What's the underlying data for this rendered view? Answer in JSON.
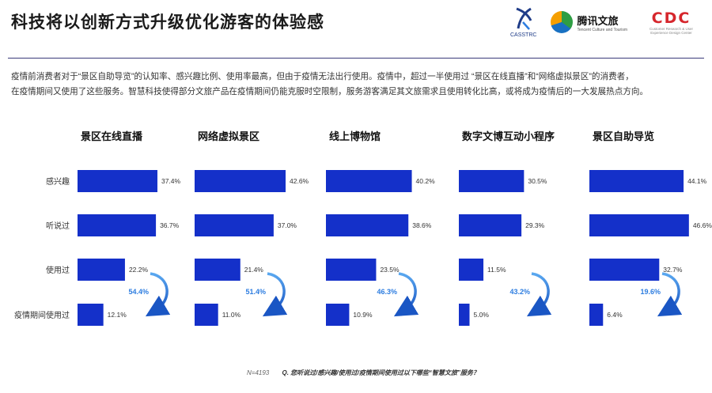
{
  "header": {
    "title": "科技将以创新方式升级优化游客的体验感",
    "logos": [
      {
        "icon": "casstrc-logo-icon",
        "text": "CASSTRC"
      },
      {
        "icon": "tencent-culture-tourism-logo-icon",
        "text": "腾讯文旅",
        "subtext": "Tencent Culture and Tourism"
      },
      {
        "icon": "cdc-logo-icon",
        "text": "CDC",
        "subtext": "Customer Research & User Experience Design Center"
      }
    ]
  },
  "intro": {
    "line1": "疫情前消费者对于“景区自助导览”的认知率、感兴趣比例、使用率最高，但由于疫情无法出行使用。疫情中，超过一半使用过 “景区在线直播”和“网络虚拟景区”的消费者，",
    "line2": "在疫情期间又使用了这些服务。智慧科技使得部分文旅产品在疫情期间仍能克服时空限制，服务游客满足其文旅需求且使用转化比高，或将成为疫情后的一大发展热点方向。"
  },
  "colors": {
    "bar": "#1430c9",
    "accent": "#2d7de0",
    "arrow_start": "#5aa8f0",
    "arrow_end": "#1a56c4",
    "divider": "#3a3a7a"
  },
  "chart_data": {
    "type": "bar",
    "orientation": "horizontal",
    "categories": [
      "感兴趣",
      "听说过",
      "使用过",
      "疫情期间使用过"
    ],
    "xlim": [
      0,
      50
    ],
    "grid": false,
    "series": [
      {
        "name": "景区在线直播",
        "values": [
          37.4,
          36.7,
          22.2,
          12.1
        ],
        "value_labels": [
          "37.4%",
          "36.7%",
          "22.2%",
          "12.1%"
        ],
        "conversion": "54.4%"
      },
      {
        "name": "网络虚拟景区",
        "values": [
          42.6,
          37.0,
          21.4,
          11.0
        ],
        "value_labels": [
          "42.6%",
          "37.0%",
          "21.4%",
          "11.0%"
        ],
        "conversion": "51.4%"
      },
      {
        "name": "线上博物馆",
        "values": [
          40.2,
          38.6,
          23.5,
          10.9
        ],
        "value_labels": [
          "40.2%",
          "38.6%",
          "23.5%",
          "10.9%"
        ],
        "conversion": "46.3%"
      },
      {
        "name": "数字文博互动小程序",
        "values": [
          30.5,
          29.3,
          11.5,
          5.0
        ],
        "value_labels": [
          "30.5%",
          "29.3%",
          "11.5%",
          "5.0%"
        ],
        "conversion": "43.2%"
      },
      {
        "name": "景区自助导览",
        "values": [
          44.1,
          46.6,
          32.7,
          6.4
        ],
        "value_labels": [
          "44.1%",
          "46.6%",
          "32.7%",
          "6.4%"
        ],
        "conversion": "19.6%"
      }
    ]
  },
  "footer": {
    "sample": "N=4193",
    "question": "Q. 您听说过/感兴趣/使用过/疫情期间使用过以下哪些“智慧文旅”服务？"
  }
}
